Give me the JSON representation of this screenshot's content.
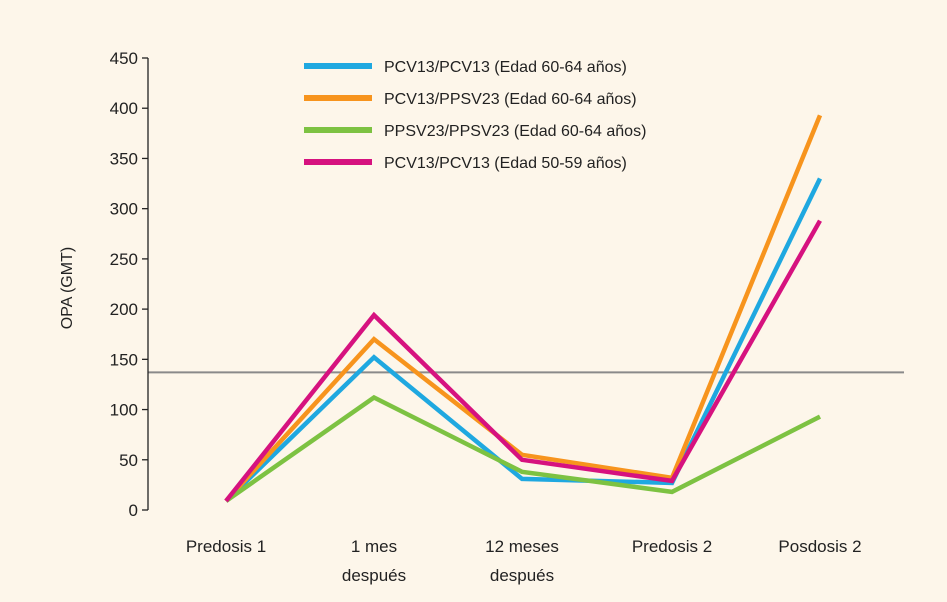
{
  "chart_data": {
    "type": "line",
    "title": "",
    "xlabel": "",
    "ylabel": "OPA (GMT)",
    "ylim": [
      0,
      450
    ],
    "yticks": [
      0,
      50,
      100,
      150,
      200,
      250,
      300,
      350,
      400,
      450
    ],
    "categories": [
      [
        "Predosis 1"
      ],
      [
        "1 mes",
        "después"
      ],
      [
        "12 meses",
        "después"
      ],
      [
        "Predosis 2"
      ],
      [
        "Posdosis 2"
      ]
    ],
    "reference_line": 137,
    "reference_color": "#8a8a8a",
    "legend_position": "top-center",
    "grid": false,
    "series": [
      {
        "name": "PCV13/PCV13 (Edad 60-64 años)",
        "color": "#1fa8e0",
        "values": [
          9,
          152,
          31,
          27,
          330
        ]
      },
      {
        "name": "PCV13/PPSV23 (Edad 60-64 años)",
        "color": "#f7941d",
        "values": [
          9,
          170,
          55,
          32,
          393
        ]
      },
      {
        "name": "PPSV23/PPSV23 (Edad 60-64 años)",
        "color": "#7dc242",
        "values": [
          9,
          112,
          38,
          18,
          93
        ]
      },
      {
        "name": "PCV13/PCV13 (Edad 50-59 años)",
        "color": "#d6127f",
        "values": [
          9,
          194,
          50,
          29,
          288
        ]
      }
    ]
  }
}
